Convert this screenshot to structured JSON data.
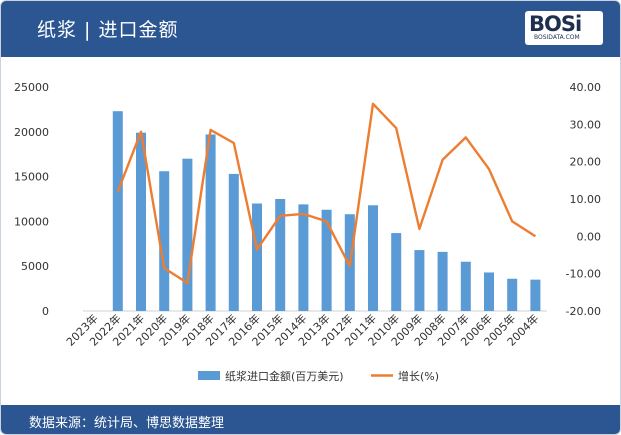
{
  "header": {
    "title": "纸浆 | 进口金额"
  },
  "logo": {
    "text": "BOSi",
    "sub": "BOSIDATA.COM"
  },
  "footer": {
    "source": "数据来源：统计局、博思数据整理"
  },
  "colors": {
    "header_bg": "#2b5692",
    "bar": "#5b9bd5",
    "line": "#ed7d31"
  },
  "chart_data": {
    "type": "bar",
    "title": "",
    "categories": [
      "2023年",
      "2022年",
      "2021年",
      "2020年",
      "2019年",
      "2018年",
      "2017年",
      "2016年",
      "2015年",
      "2014年",
      "2013年",
      "2012年",
      "2011年",
      "2010年",
      "2009年",
      "2008年",
      "2007年",
      "2006年",
      "2005年",
      "2004年"
    ],
    "series": [
      {
        "name": "纸浆进口金额(百万美元)",
        "type": "bar",
        "axis": "left",
        "values": [
          null,
          22300,
          19900,
          15600,
          17000,
          19700,
          15300,
          12000,
          12500,
          11900,
          11300,
          10800,
          11800,
          8700,
          6800,
          6600,
          5500,
          4300,
          3600,
          3500
        ]
      },
      {
        "name": "增长(%)",
        "type": "line",
        "axis": "right",
        "values": [
          null,
          12.0,
          28.0,
          -8.5,
          -12.5,
          28.5,
          25.0,
          -3.5,
          5.5,
          6.0,
          4.0,
          -8.0,
          35.5,
          29.0,
          2.0,
          20.5,
          26.5,
          18.0,
          4.0,
          0.0
        ]
      }
    ],
    "y_left": {
      "ticks": [
        "0",
        "5000",
        "10000",
        "15000",
        "20000",
        "25000"
      ],
      "range": [
        0,
        25000
      ]
    },
    "y_right": {
      "ticks": [
        "-20.00",
        "-10.00",
        "0.00",
        "10.00",
        "20.00",
        "30.00",
        "40.00"
      ],
      "range": [
        -20,
        40
      ]
    },
    "legend": "bottom",
    "grid": false
  }
}
